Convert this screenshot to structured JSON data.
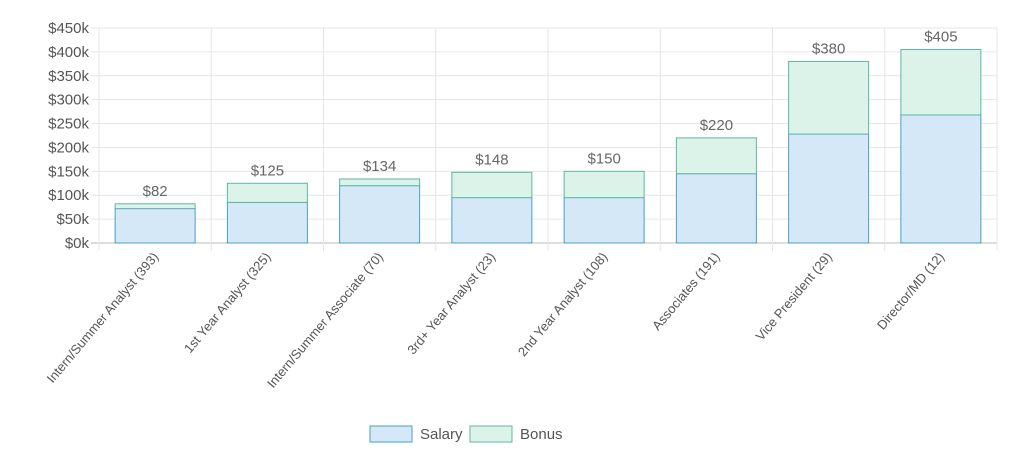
{
  "chart_data": {
    "type": "bar",
    "stacked": true,
    "categories": [
      "Intern/Summer Analyst (393)",
      "1st Year Analyst (325)",
      "Intern/Summer Associate (70)",
      "3rd+ Year Analyst (23)",
      "2nd Year Analyst (108)",
      "Associates (191)",
      "Vice President (29)",
      "Director/MD (12)"
    ],
    "series": [
      {
        "name": "Salary",
        "values": [
          72,
          85,
          120,
          95,
          95,
          145,
          228,
          268
        ]
      },
      {
        "name": "Bonus",
        "values": [
          10,
          40,
          14,
          53,
          55,
          75,
          152,
          137
        ]
      }
    ],
    "totals": [
      82,
      125,
      134,
      148,
      150,
      220,
      380,
      405
    ],
    "total_labels": [
      "$82",
      "$125",
      "$134",
      "$148",
      "$150",
      "$220",
      "$380",
      "$405"
    ],
    "y_ticks": [
      "$0k",
      "$50k",
      "$100k",
      "$150k",
      "$200k",
      "$250k",
      "$300k",
      "$350k",
      "$400k",
      "$450k"
    ],
    "ylim": [
      0,
      450
    ],
    "grid": true,
    "legend_position": "bottom",
    "colors": {
      "salary_fill": "#d5e8f8",
      "salary_stroke": "#4a9ec4",
      "bonus_fill": "#dcf3ea",
      "bonus_stroke": "#5fb5a8",
      "grid": "#e6e6e6",
      "axis": "#bbbbbb"
    },
    "legend": {
      "salary_label": "Salary",
      "bonus_label": "Bonus"
    }
  }
}
